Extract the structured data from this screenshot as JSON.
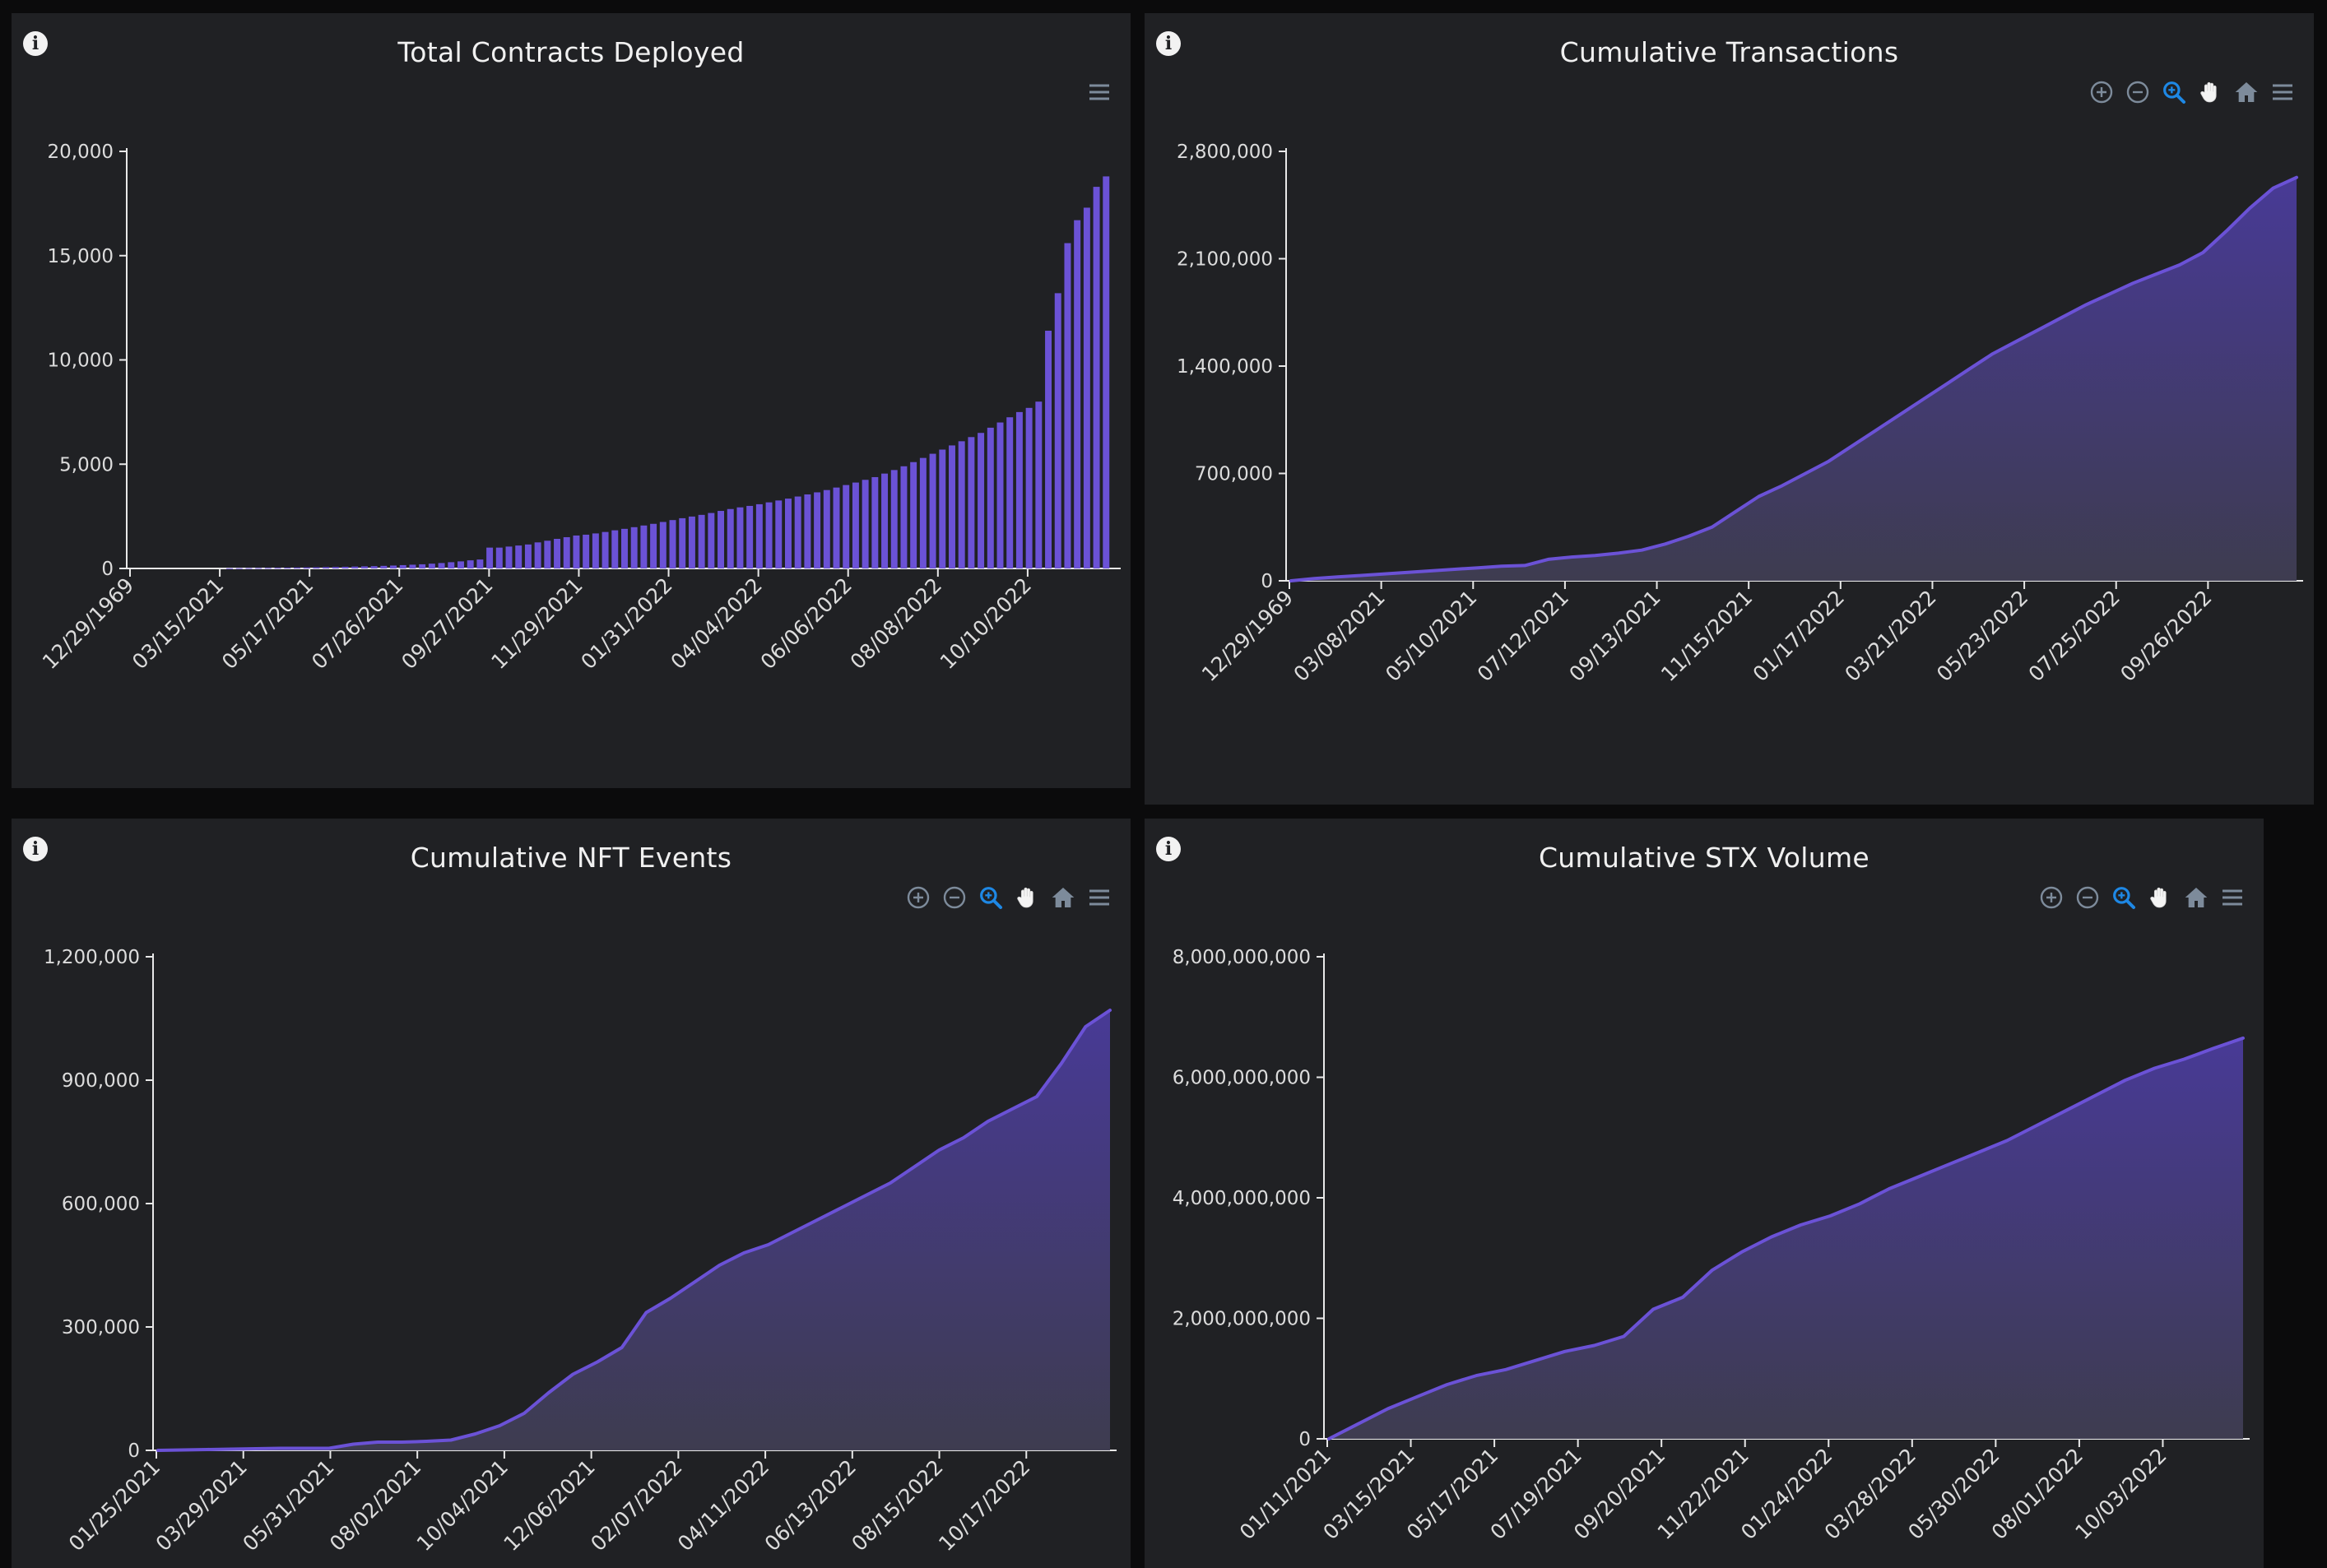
{
  "colors": {
    "background": "#0b0b0c",
    "panel": "#202124",
    "series": "#6b52d6",
    "area_fill_top": "#4a3b9c",
    "area_fill_bottom": "#3f3d52",
    "toolbar_icon": "#7d8b9b",
    "toolbar_active": "#1e88e5"
  },
  "panels": [
    {
      "title": "Total Contracts Deployed",
      "info_icon": "info-icon",
      "toolbar": [
        "menu-icon"
      ]
    },
    {
      "title": "Cumulative Transactions",
      "info_icon": "info-icon",
      "toolbar": [
        "zoom-in-icon",
        "zoom-out-icon",
        "selection-zoom-icon",
        "pan-hand-icon",
        "reset-home-icon",
        "menu-icon"
      ]
    },
    {
      "title": "Cumulative NFT Events",
      "info_icon": "info-icon",
      "toolbar": [
        "zoom-in-icon",
        "zoom-out-icon",
        "selection-zoom-icon",
        "pan-hand-icon",
        "reset-home-icon",
        "menu-icon"
      ]
    },
    {
      "title": "Cumulative STX Volume",
      "info_icon": "info-icon",
      "toolbar": [
        "zoom-in-icon",
        "zoom-out-icon",
        "selection-zoom-icon",
        "pan-hand-icon",
        "reset-home-icon",
        "menu-icon"
      ]
    }
  ],
  "chart_data": [
    {
      "type": "bar",
      "title": "Total Contracts Deployed",
      "xlabel": "",
      "ylabel": "",
      "ylim": [
        0,
        20000
      ],
      "yticks": [
        "0",
        "5,000",
        "10,000",
        "15,000",
        "20,000"
      ],
      "xticks": [
        "12/29/1969",
        "03/15/2021",
        "05/17/2021",
        "07/26/2021",
        "09/27/2021",
        "11/29/2021",
        "01/31/2022",
        "04/04/2022",
        "06/06/2022",
        "08/08/2022",
        "10/10/2022"
      ],
      "grid": false,
      "series": [
        {
          "values": [
            0,
            0,
            0,
            0,
            0,
            0,
            0,
            0,
            0,
            0,
            10,
            15,
            20,
            25,
            30,
            35,
            40,
            45,
            50,
            55,
            65,
            70,
            80,
            90,
            100,
            110,
            125,
            140,
            160,
            180,
            200,
            230,
            260,
            300,
            340,
            390,
            430,
            1000,
            1000,
            1050,
            1100,
            1150,
            1250,
            1330,
            1420,
            1500,
            1580,
            1620,
            1680,
            1750,
            1830,
            1900,
            1980,
            2060,
            2140,
            2230,
            2320,
            2410,
            2490,
            2570,
            2660,
            2760,
            2850,
            2930,
            3000,
            3080,
            3170,
            3260,
            3350,
            3450,
            3550,
            3650,
            3760,
            3880,
            4000,
            4120,
            4250,
            4380,
            4550,
            4720,
            4900,
            5100,
            5300,
            5500,
            5700,
            5900,
            6100,
            6300,
            6500,
            6750,
            7000,
            7250,
            7500,
            7700,
            8000,
            11400,
            13200,
            15600,
            16700,
            17300,
            18300,
            18800
          ]
        }
      ]
    },
    {
      "type": "area",
      "title": "Cumulative Transactions",
      "xlabel": "",
      "ylabel": "",
      "ylim": [
        0,
        2800000
      ],
      "yticks": [
        "0",
        "700,000",
        "1,400,000",
        "2,100,000",
        "2,800,000"
      ],
      "xticks": [
        "12/29/1969",
        "03/08/2021",
        "05/10/2021",
        "07/12/2021",
        "09/13/2021",
        "11/15/2021",
        "01/17/2022",
        "03/21/2022",
        "05/23/2022",
        "07/25/2022",
        "09/26/2022"
      ],
      "grid": false,
      "series": [
        {
          "values": [
            0,
            15000,
            25000,
            35000,
            45000,
            55000,
            65000,
            75000,
            85000,
            95000,
            100000,
            140000,
            155000,
            165000,
            180000,
            200000,
            240000,
            290000,
            350000,
            450000,
            550000,
            620000,
            700000,
            780000,
            880000,
            980000,
            1080000,
            1180000,
            1280000,
            1380000,
            1480000,
            1560000,
            1640000,
            1720000,
            1800000,
            1870000,
            1940000,
            2000000,
            2060000,
            2140000,
            2280000,
            2430000,
            2560000,
            2630000
          ]
        }
      ]
    },
    {
      "type": "area",
      "title": "Cumulative NFT Events",
      "xlabel": "",
      "ylabel": "",
      "ylim": [
        0,
        1200000
      ],
      "yticks": [
        "0",
        "300,000",
        "600,000",
        "900,000",
        "1,200,000"
      ],
      "xticks": [
        "01/25/2021",
        "03/29/2021",
        "05/31/2021",
        "08/02/2021",
        "10/04/2021",
        "12/06/2021",
        "02/07/2022",
        "04/11/2022",
        "06/13/2022",
        "08/15/2022",
        "10/17/2022"
      ],
      "grid": false,
      "series": [
        {
          "values": [
            0,
            1000,
            2000,
            3000,
            4000,
            5000,
            5000,
            5000,
            15000,
            20000,
            20000,
            22000,
            25000,
            40000,
            60000,
            90000,
            140000,
            185000,
            215000,
            250000,
            335000,
            370000,
            410000,
            450000,
            480000,
            500000,
            530000,
            560000,
            590000,
            620000,
            650000,
            690000,
            730000,
            760000,
            800000,
            830000,
            860000,
            940000,
            1030000,
            1070000
          ]
        }
      ]
    },
    {
      "type": "area",
      "title": "Cumulative STX Volume",
      "xlabel": "",
      "ylabel": "",
      "ylim": [
        0,
        8000000000
      ],
      "yticks": [
        "0",
        "2,000,000,000",
        "4,000,000,000",
        "6,000,000,000",
        "8,000,000,000"
      ],
      "xticks": [
        "01/11/2021",
        "03/15/2021",
        "05/17/2021",
        "07/19/2021",
        "09/20/2021",
        "11/22/2021",
        "01/24/2022",
        "03/28/2022",
        "05/30/2022",
        "08/01/2022",
        "10/03/2022"
      ],
      "grid": false,
      "series": [
        {
          "values": [
            0,
            250000000,
            500000000,
            700000000,
            900000000,
            1050000000,
            1150000000,
            1300000000,
            1450000000,
            1550000000,
            1700000000,
            2150000000,
            2350000000,
            2800000000,
            3100000000,
            3350000000,
            3550000000,
            3700000000,
            3900000000,
            4150000000,
            4350000000,
            4550000000,
            4750000000,
            4950000000,
            5200000000,
            5450000000,
            5700000000,
            5950000000,
            6150000000,
            6300000000,
            6480000000,
            6650000000
          ]
        }
      ]
    }
  ]
}
